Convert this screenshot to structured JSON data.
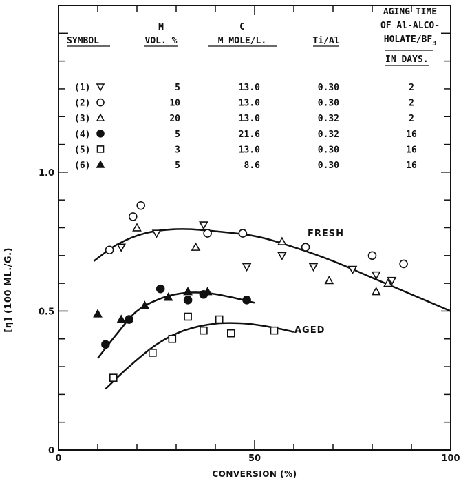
{
  "chart_data": {
    "type": "scatter",
    "xlabel": "CONVERSION (%)",
    "ylabel": "[η] (100 ML./G.)",
    "xlim": [
      0,
      100
    ],
    "ylim": [
      0,
      1.6
    ],
    "x_ticks": [
      "0",
      "50",
      "100"
    ],
    "y_ticks": [
      "0",
      "0.5",
      "1.0"
    ],
    "legend": {
      "headers": [
        "SYMBOL",
        "M\nVOL. %",
        "C\nM MOLE/L.",
        "Ti/Al",
        "AGING TIME\nOF Al-ALCO-\nHOLATE/BF3\nIN DAYS."
      ],
      "rows": [
        {
          "label": "(1)",
          "marker": "triangle-down-open",
          "vol": "5",
          "c": "13.0",
          "tial": "0.30",
          "days": "2"
        },
        {
          "label": "(2)",
          "marker": "circle-open",
          "vol": "10",
          "c": "13.0",
          "tial": "0.30",
          "days": "2"
        },
        {
          "label": "(3)",
          "marker": "triangle-up-open",
          "vol": "20",
          "c": "13.0",
          "tial": "0.32",
          "days": "2"
        },
        {
          "label": "(4)",
          "marker": "circle-filled",
          "vol": "5",
          "c": "21.6",
          "tial": "0.32",
          "days": "16"
        },
        {
          "label": "(5)",
          "marker": "square-open",
          "vol": "3",
          "c": "13.0",
          "tial": "0.30",
          "days": "16"
        },
        {
          "label": "(6)",
          "marker": "triangle-up-filled",
          "vol": "5",
          "c": "8.6",
          "tial": "0.30",
          "days": "16"
        }
      ]
    },
    "annotations": [
      "FRESH",
      "AGED"
    ],
    "series": [
      {
        "name": "(1)",
        "marker": "triangle-down-open",
        "points": [
          [
            16,
            0.73
          ],
          [
            25,
            0.78
          ],
          [
            37,
            0.81
          ],
          [
            48,
            0.66
          ],
          [
            57,
            0.7
          ],
          [
            65,
            0.66
          ],
          [
            75,
            0.65
          ],
          [
            81,
            0.63
          ],
          [
            85,
            0.61
          ]
        ]
      },
      {
        "name": "(2)",
        "marker": "circle-open",
        "points": [
          [
            13,
            0.72
          ],
          [
            19,
            0.84
          ],
          [
            21,
            0.88
          ],
          [
            38,
            0.78
          ],
          [
            47,
            0.78
          ],
          [
            63,
            0.73
          ],
          [
            80,
            0.7
          ],
          [
            88,
            0.67
          ]
        ]
      },
      {
        "name": "(3)",
        "marker": "triangle-up-open",
        "points": [
          [
            20,
            0.8
          ],
          [
            35,
            0.73
          ],
          [
            57,
            0.75
          ],
          [
            69,
            0.61
          ],
          [
            81,
            0.57
          ],
          [
            84,
            0.6
          ]
        ]
      },
      {
        "name": "(4)",
        "marker": "circle-filled",
        "points": [
          [
            12,
            0.38
          ],
          [
            18,
            0.47
          ],
          [
            26,
            0.58
          ],
          [
            33,
            0.54
          ],
          [
            37,
            0.56
          ],
          [
            48,
            0.54
          ]
        ]
      },
      {
        "name": "(5)",
        "marker": "square-open",
        "points": [
          [
            14,
            0.26
          ],
          [
            24,
            0.35
          ],
          [
            29,
            0.4
          ],
          [
            33,
            0.48
          ],
          [
            37,
            0.43
          ],
          [
            41,
            0.47
          ],
          [
            44,
            0.42
          ],
          [
            55,
            0.43
          ]
        ]
      },
      {
        "name": "(6)",
        "marker": "triangle-up-filled",
        "points": [
          [
            10,
            0.49
          ],
          [
            16,
            0.47
          ],
          [
            22,
            0.52
          ],
          [
            28,
            0.55
          ],
          [
            33,
            0.57
          ],
          [
            38,
            0.57
          ]
        ]
      }
    ],
    "curves": [
      {
        "name": "fresh",
        "points": [
          [
            9,
            0.68
          ],
          [
            15,
            0.74
          ],
          [
            22,
            0.78
          ],
          [
            30,
            0.795
          ],
          [
            38,
            0.79
          ],
          [
            50,
            0.77
          ],
          [
            60,
            0.73
          ],
          [
            70,
            0.68
          ],
          [
            80,
            0.62
          ],
          [
            90,
            0.56
          ],
          [
            100,
            0.5
          ]
        ]
      },
      {
        "name": "aged-16-day",
        "points": [
          [
            10,
            0.33
          ],
          [
            15,
            0.42
          ],
          [
            20,
            0.5
          ],
          [
            26,
            0.545
          ],
          [
            32,
            0.565
          ],
          [
            38,
            0.565
          ],
          [
            44,
            0.55
          ],
          [
            50,
            0.53
          ]
        ]
      },
      {
        "name": "aged",
        "points": [
          [
            12,
            0.22
          ],
          [
            18,
            0.3
          ],
          [
            25,
            0.38
          ],
          [
            32,
            0.43
          ],
          [
            40,
            0.455
          ],
          [
            48,
            0.455
          ],
          [
            55,
            0.44
          ],
          [
            60,
            0.425
          ]
        ]
      }
    ]
  }
}
